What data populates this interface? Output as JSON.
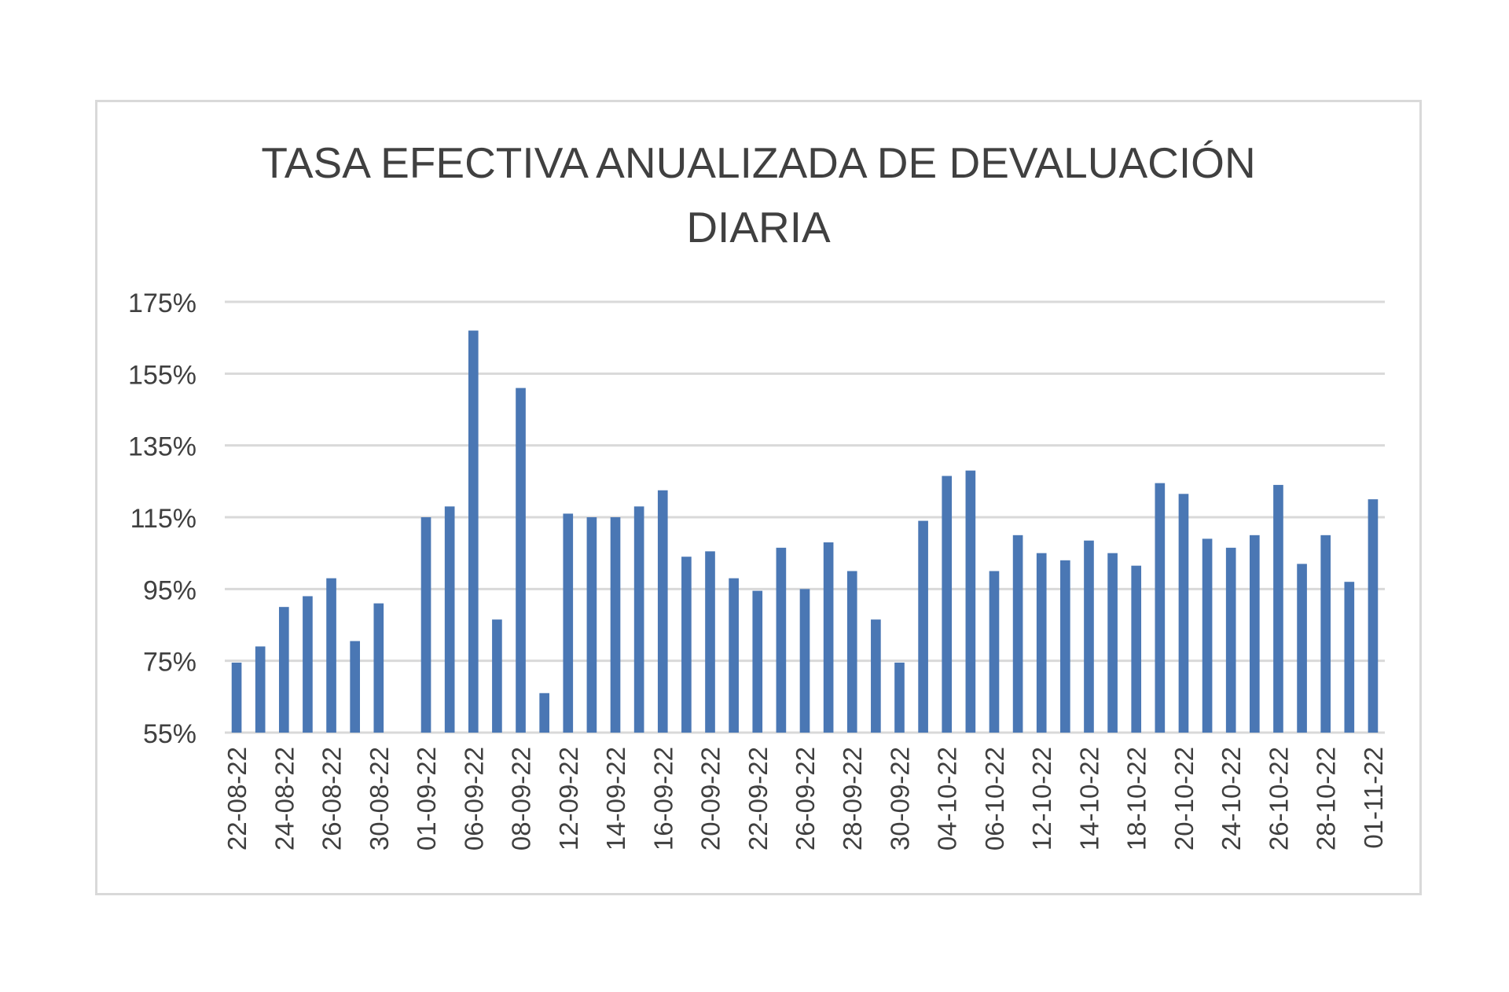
{
  "chart_data": {
    "type": "bar",
    "title_lines": [
      "TASA EFECTIVA  ANUALIZADA DE DEVALUACIÓN",
      "DIARIA"
    ],
    "y_ticks": [
      "55%",
      "75%",
      "95%",
      "115%",
      "135%",
      "155%",
      "175%"
    ],
    "ylim": [
      55,
      175
    ],
    "grid": true,
    "legend": "none",
    "bar_color": "#4a77b4",
    "x_labels": [
      "22-08-22",
      "24-08-22",
      "26-08-22",
      "30-08-22",
      "01-09-22",
      "06-09-22",
      "08-09-22",
      "12-09-22",
      "14-09-22",
      "16-09-22",
      "20-09-22",
      "22-09-22",
      "26-09-22",
      "28-09-22",
      "30-09-22",
      "04-10-22",
      "06-10-22",
      "12-10-22",
      "14-10-22",
      "18-10-22",
      "20-10-22",
      "24-10-22",
      "26-10-22",
      "28-10-22",
      "01-11-22"
    ],
    "values": [
      74.5,
      79,
      90,
      93,
      98,
      80.5,
      91,
      null,
      115,
      118,
      167,
      86.5,
      151,
      66,
      116,
      115,
      115,
      118,
      122.5,
      104,
      105.5,
      98,
      94.5,
      106.5,
      95,
      108,
      100,
      86.5,
      74.5,
      114,
      126.5,
      128,
      100,
      110,
      105,
      103,
      108.5,
      105,
      101.5,
      124.5,
      121.5,
      109,
      106.5,
      110,
      124,
      102,
      110,
      97,
      120
    ]
  }
}
